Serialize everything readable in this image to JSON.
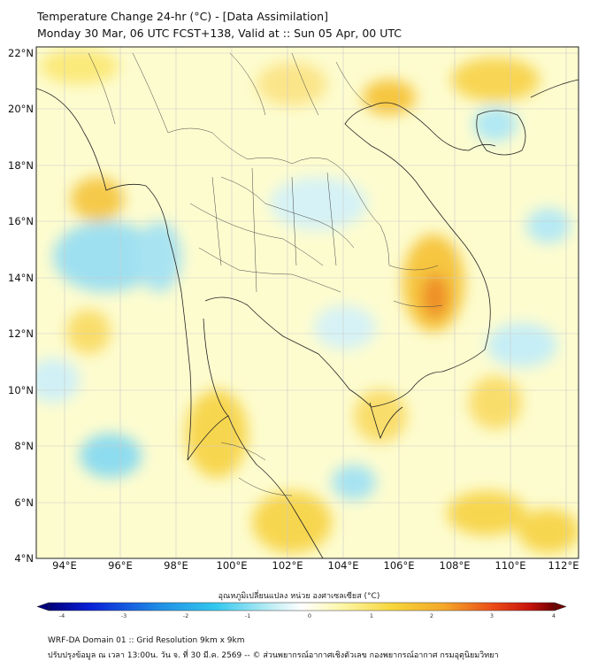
{
  "title": {
    "line1": "Temperature Change 24-hr (°C) - [Data Assimilation]",
    "line2": "Monday 30 Mar, 06 UTC FCST+138, Valid at :: Sun 05 Apr, 00 UTC"
  },
  "map": {
    "variable": "Temperature Change 24-hr",
    "unit": "°C",
    "lat_range": [
      4,
      22.2
    ],
    "lon_range": [
      93,
      112.5
    ],
    "lat_ticks": [
      "22°N",
      "20°N",
      "18°N",
      "16°N",
      "14°N",
      "12°N",
      "10°N",
      "8°N",
      "6°N",
      "4°N"
    ],
    "lon_ticks": [
      "94°E",
      "96°E",
      "98°E",
      "100°E",
      "102°E",
      "104°E",
      "106°E",
      "108°E",
      "110°E",
      "112°E"
    ],
    "grid": true,
    "background_color": "#fdfccf"
  },
  "colorbar": {
    "label": "อุณหภูมิเปลี่ยนแปลง หน่วย องศาเซลเซียส (°C)",
    "ticks": [
      "-4",
      "-3",
      "-2",
      "-1",
      "0",
      "1",
      "2",
      "3",
      "4"
    ],
    "range": [
      -4,
      4
    ],
    "colors": [
      "#00007a",
      "#0a1fd6",
      "#1f8fe6",
      "#33c8ee",
      "#a6e8f2",
      "#ffffff",
      "#fdf6a8",
      "#f7d63a",
      "#f4a82a",
      "#ea4b16",
      "#c8140e",
      "#6e0000"
    ]
  },
  "footer": {
    "line1": "WRF-DA Domain 01 :: Grid Resolution 9km x 9km",
    "line2": "ปรับปรุงข้อมูล ณ เวลา 13:00น. วัน จ. ที่ 30 มี.ค. 2569 -- © ส่วนพยากรณ์อากาศเชิงตัวเลข กองพยากรณ์อากาศ กรมอุตุนิยมวิทยา"
  }
}
